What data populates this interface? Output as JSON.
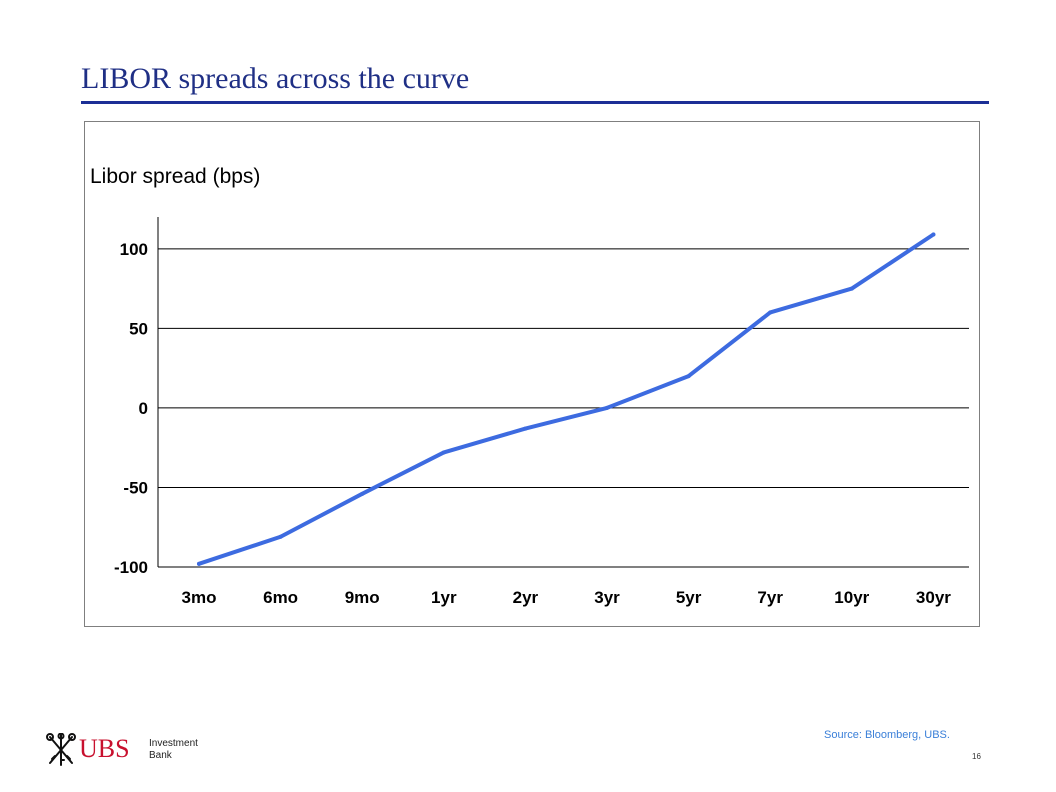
{
  "slide": {
    "title": "LIBOR spreads across the curve",
    "source": "Source:  Bloomberg, UBS.",
    "page_number": "16"
  },
  "logo": {
    "wordmark": "UBS",
    "line1": "Investment",
    "line2": "Bank",
    "icon": "ubs-keys-icon",
    "color": "#c8102e"
  },
  "colors": {
    "title": "#1f2f85",
    "rule": "#1c2f96",
    "series": "#3d6be0",
    "source": "#3a7fd8"
  },
  "chart_data": {
    "type": "line",
    "title": "Libor spread (bps)",
    "xlabel": "",
    "ylabel": "",
    "categories": [
      "3mo",
      "6mo",
      "9mo",
      "1yr",
      "2yr",
      "3yr",
      "5yr",
      "7yr",
      "10yr",
      "30yr"
    ],
    "series": [
      {
        "values": [
          -98,
          -81,
          -54,
          -28,
          -13,
          0,
          20,
          60,
          75,
          109
        ]
      }
    ],
    "ylim": [
      -100,
      120
    ],
    "yticks": [
      100,
      50,
      0,
      -50,
      -100
    ],
    "grid": true,
    "legend": "none"
  }
}
